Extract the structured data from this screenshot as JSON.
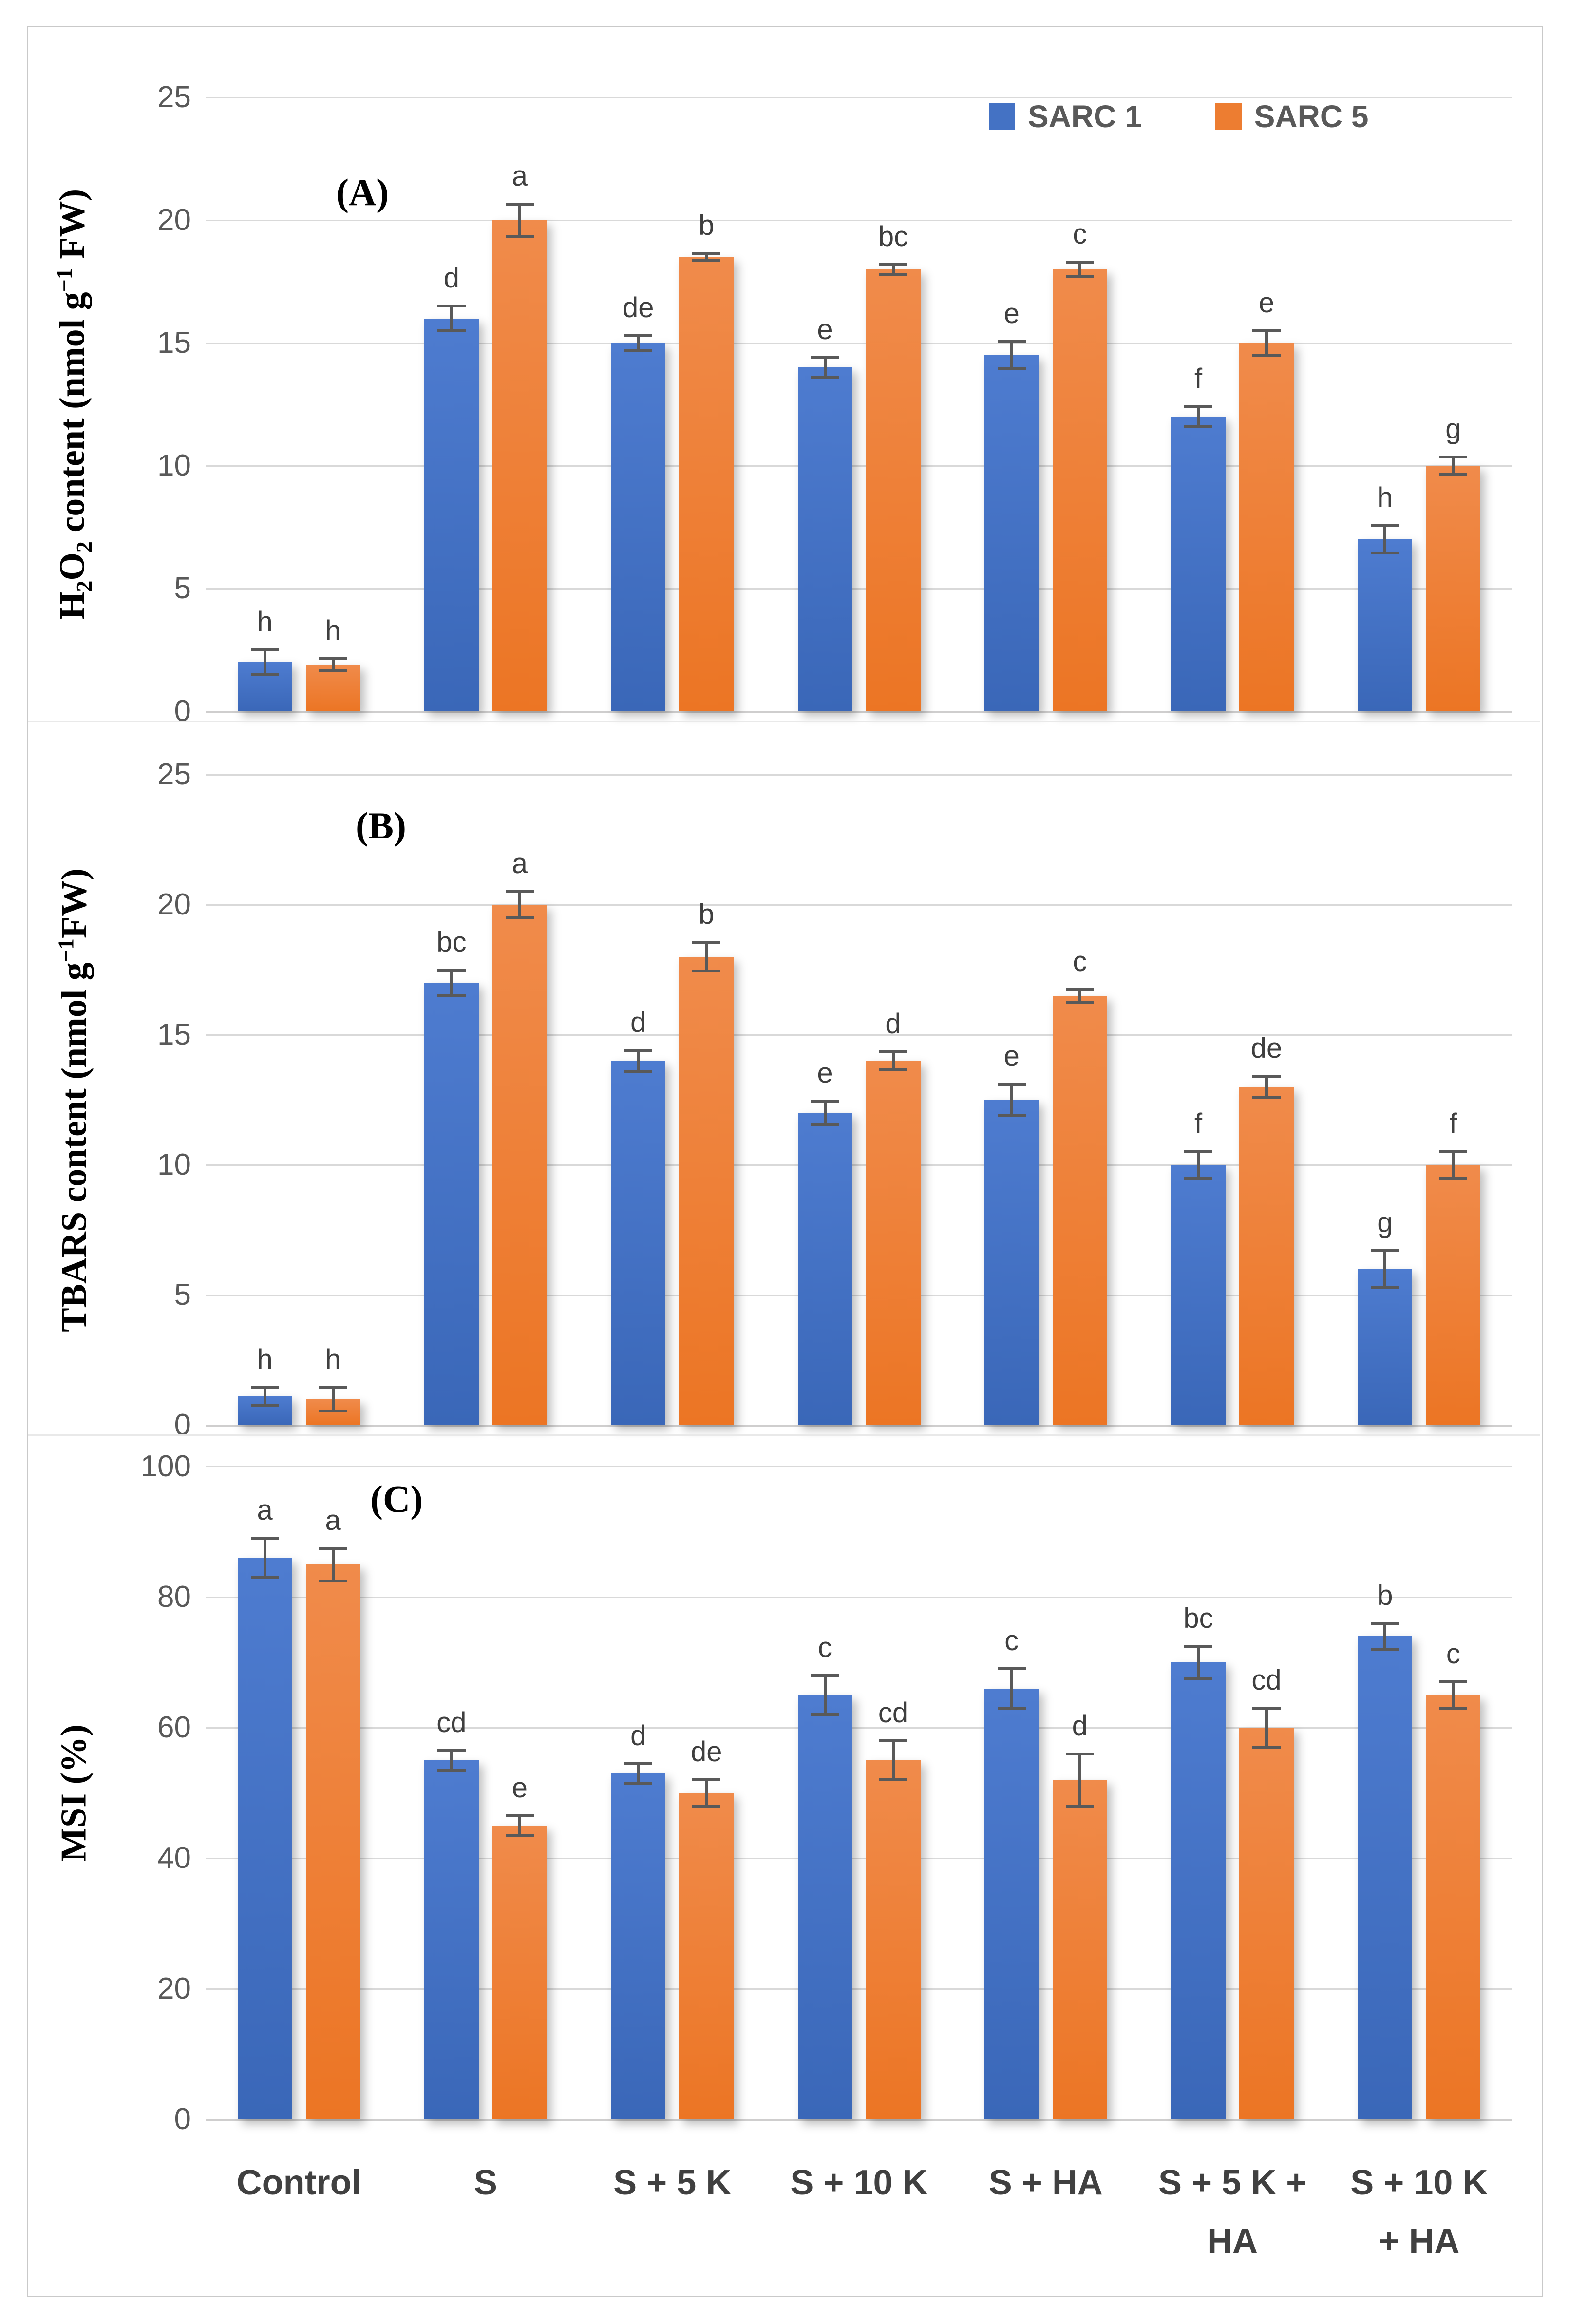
{
  "legend": {
    "items": [
      {
        "label": "SARC 1",
        "color": "#4472C4"
      },
      {
        "label": "SARC 5",
        "color": "#ED7D31"
      }
    ]
  },
  "colors": {
    "sarc1_top": "#4E7CD0",
    "sarc1_bottom": "#3A67B8",
    "sarc5_top": "#F08B4B",
    "sarc5_bottom": "#EC7524",
    "error": "#595959",
    "letter": "#3F3F3F",
    "grid": "#D9D9D9",
    "tick": "#595959",
    "xlabel": "#404040"
  },
  "categories_display": [
    [
      "Control"
    ],
    [
      "S"
    ],
    [
      "S + 5 K"
    ],
    [
      "S + 10 K"
    ],
    [
      "S + HA"
    ],
    [
      "S + 5 K +",
      "HA"
    ],
    [
      "S + 10 K",
      "+ HA"
    ]
  ],
  "chart_data": [
    {
      "type": "bar",
      "panel_label": "(A)",
      "ylabel_parts": [
        {
          "t": "H"
        },
        {
          "sub": "2"
        },
        {
          "t": "O"
        },
        {
          "sub": "2"
        },
        {
          "t": " content (nmol g"
        },
        {
          "sup": "−1"
        },
        {
          "t": " FW)"
        }
      ],
      "ylim": [
        0,
        25
      ],
      "yticks": [
        0,
        5,
        10,
        15,
        20,
        25
      ],
      "grid": true,
      "legend_position": "top-right",
      "categories": [
        "Control",
        "S",
        "S + 5 K",
        "S + 10 K",
        "S + HA",
        "S + 5 K + HA",
        "S + 10 K + HA"
      ],
      "series": [
        {
          "name": "SARC 1",
          "values": [
            2,
            16,
            15,
            14,
            14.5,
            12,
            7
          ],
          "errors": [
            0.5,
            0.5,
            0.3,
            0.4,
            0.55,
            0.4,
            0.55
          ],
          "letters": [
            "h",
            "d",
            "de",
            "e",
            "e",
            "f",
            "h"
          ]
        },
        {
          "name": "SARC 5",
          "values": [
            1.9,
            20,
            18.5,
            18,
            18,
            15,
            10
          ],
          "errors": [
            0.25,
            0.65,
            0.15,
            0.2,
            0.3,
            0.5,
            0.35
          ],
          "letters": [
            "h",
            "a",
            "b",
            "bc",
            "c",
            "e",
            "g"
          ]
        }
      ]
    },
    {
      "type": "bar",
      "panel_label": "(B)",
      "ylabel_parts": [
        {
          "t": "TBARS content (nmol g"
        },
        {
          "sup": "−1"
        },
        {
          "t": "FW)"
        }
      ],
      "ylim": [
        0,
        25
      ],
      "yticks": [
        0,
        5,
        10,
        15,
        20,
        25
      ],
      "grid": true,
      "categories": [
        "Control",
        "S",
        "S + 5 K",
        "S + 10 K",
        "S + HA",
        "S + 5 K + HA",
        "S + 10 K + HA"
      ],
      "series": [
        {
          "name": "SARC 1",
          "values": [
            1.1,
            17,
            14,
            12,
            12.5,
            10,
            6
          ],
          "errors": [
            0.35,
            0.5,
            0.4,
            0.45,
            0.6,
            0.5,
            0.7
          ],
          "letters": [
            "h",
            "bc",
            "d",
            "e",
            "e",
            "f",
            "g"
          ]
        },
        {
          "name": "SARC 5",
          "values": [
            1.0,
            20,
            18,
            14,
            16.5,
            13,
            10
          ],
          "errors": [
            0.45,
            0.5,
            0.55,
            0.35,
            0.25,
            0.4,
            0.5
          ],
          "letters": [
            "h",
            "a",
            "b",
            "d",
            "c",
            "de",
            "f"
          ]
        }
      ]
    },
    {
      "type": "bar",
      "panel_label": "(C)",
      "ylabel_parts": [
        {
          "t": "MSI (%)"
        }
      ],
      "ylim": [
        0,
        100
      ],
      "yticks": [
        0,
        20,
        40,
        60,
        80,
        100
      ],
      "grid": true,
      "categories": [
        "Control",
        "S",
        "S + 5 K",
        "S + 10 K",
        "S + HA",
        "S + 5 K + HA",
        "S + 10 K + HA"
      ],
      "series": [
        {
          "name": "SARC 1",
          "values": [
            86,
            55,
            53,
            65,
            66,
            70,
            74
          ],
          "errors": [
            3,
            1.5,
            1.5,
            3,
            3,
            2.5,
            2
          ],
          "letters": [
            "a",
            "cd",
            "d",
            "c",
            "c",
            "bc",
            "b"
          ]
        },
        {
          "name": "SARC 5",
          "values": [
            85,
            45,
            50,
            55,
            52,
            60,
            65
          ],
          "errors": [
            2.5,
            1.5,
            2,
            3,
            4,
            3,
            2
          ],
          "letters": [
            "a",
            "e",
            "de",
            "cd",
            "d",
            "cd",
            "c"
          ]
        }
      ]
    }
  ]
}
